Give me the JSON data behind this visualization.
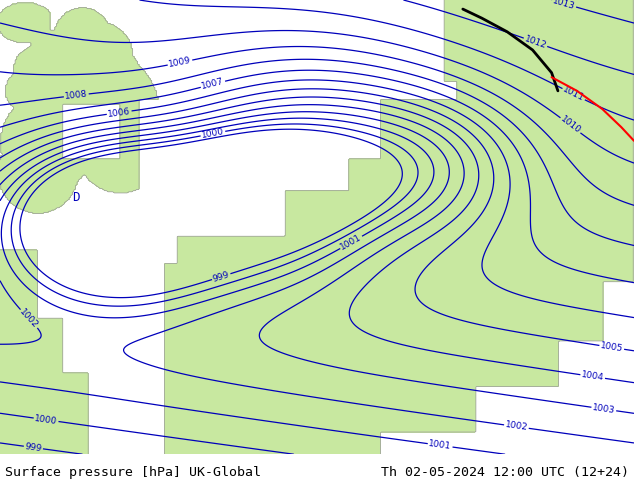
{
  "title_left": "Surface pressure [hPa] UK-Global",
  "title_right": "Th 02-05-2024 12:00 UTC (12+24)",
  "title_fontsize": 9.5,
  "title_color": "#000000",
  "background_color": "#ffffff",
  "sea_color": "#ccddf0",
  "land_color": "#c8e8a0",
  "contour_color_blue": "#0000bb",
  "contour_linewidth": 0.9,
  "label_fontsize": 6.5,
  "figsize": [
    6.34,
    4.9
  ],
  "dpi": 100
}
